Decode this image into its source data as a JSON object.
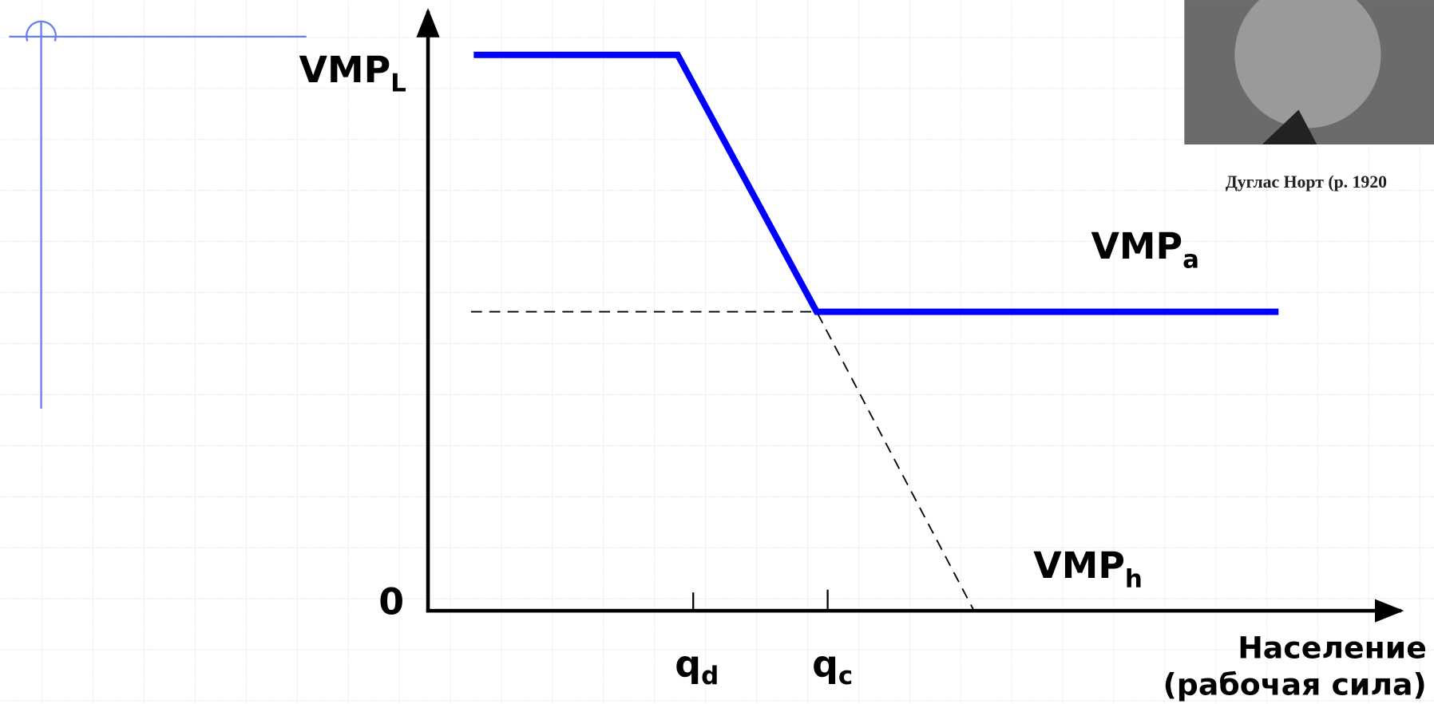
{
  "labels": {
    "vmp_l": {
      "main": "VMP",
      "sub": "L"
    },
    "vmp_a": {
      "main": "VMP",
      "sub": "a"
    },
    "vmp_h": {
      "main": "VMP",
      "sub": "h"
    },
    "origin": "0",
    "q_d": {
      "main": "q",
      "sub": "d"
    },
    "q_c": {
      "main": "q",
      "sub": "c"
    },
    "x_axis_title": [
      "Население",
      "(рабочая сила)"
    ]
  },
  "photo": {
    "caption": "Дуглас Норт (р. 1920"
  }
}
